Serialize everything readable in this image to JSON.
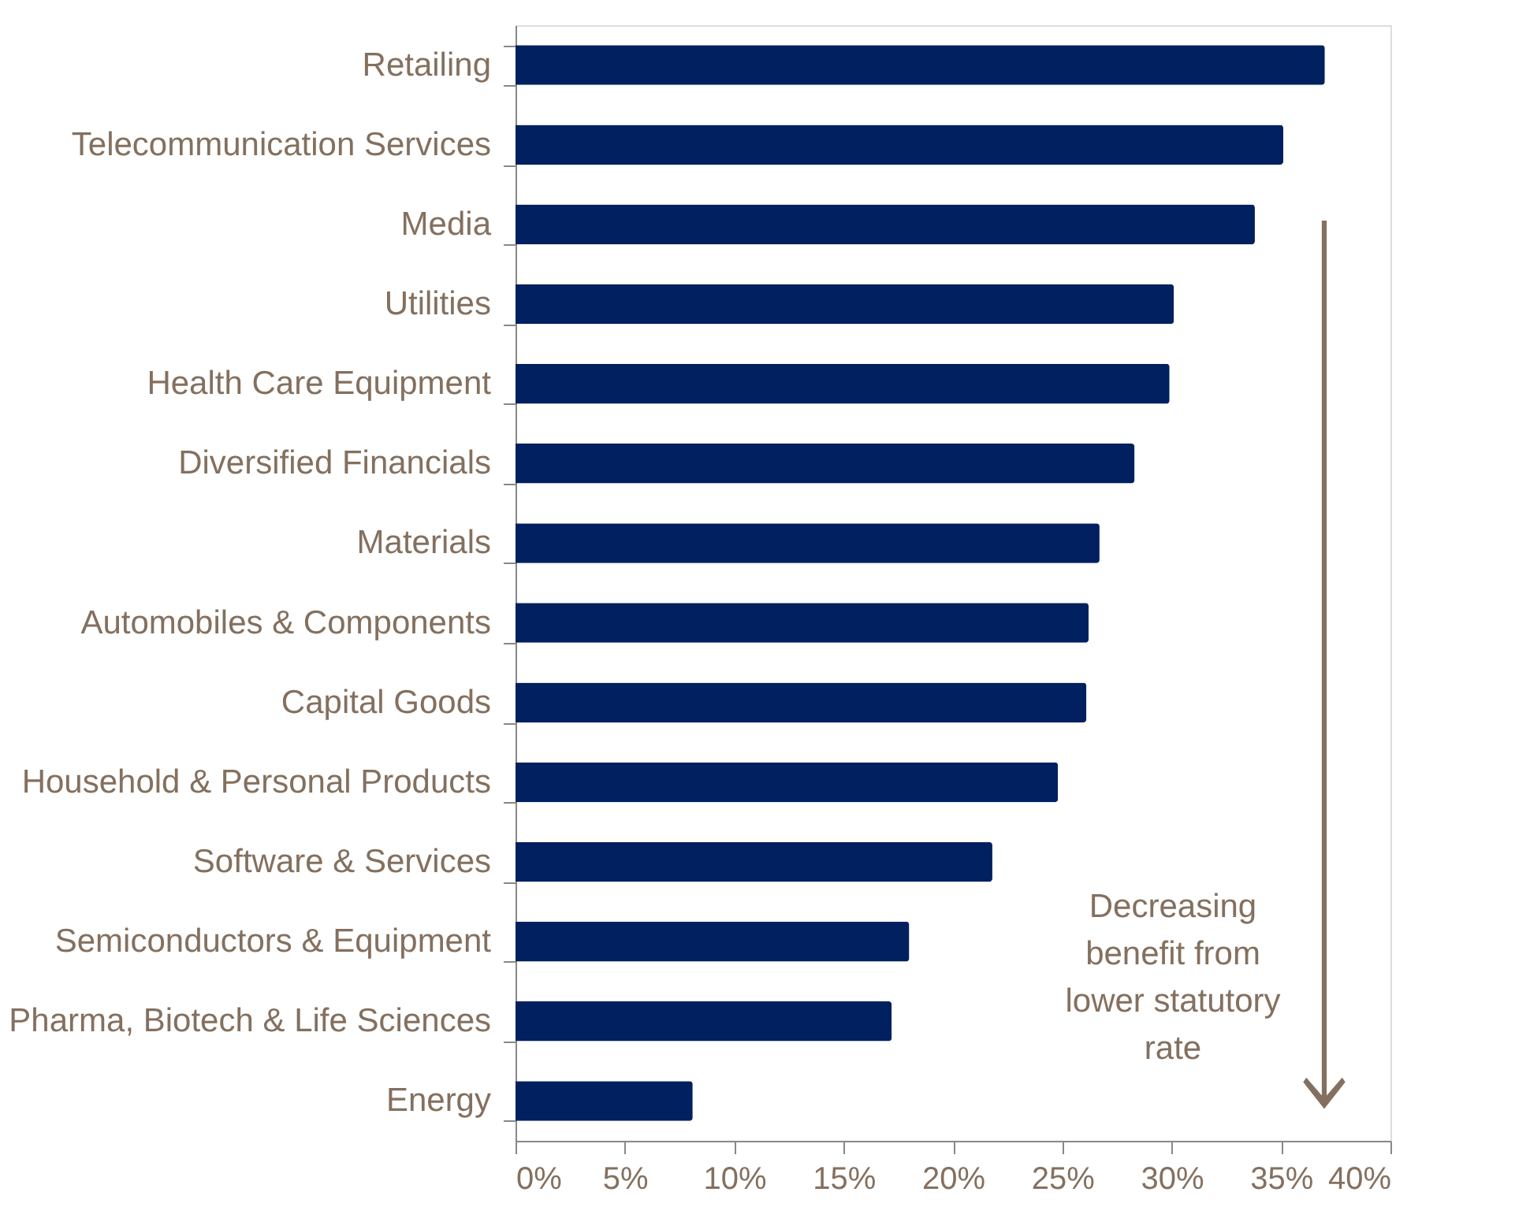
{
  "chart_data": {
    "type": "bar",
    "orientation": "horizontal",
    "categories": [
      "Retailing",
      "Telecommunication Services",
      "Media",
      "Utilities",
      "Health Care Equipment",
      "Diversified Financials",
      "Materials",
      "Automobiles & Components",
      "Capital Goods",
      "Household & Personal Products",
      "Software & Services",
      "Semiconductors & Equipment",
      "Pharma, Biotech & Life Sciences",
      "Energy"
    ],
    "values": [
      37.0,
      35.1,
      33.8,
      30.1,
      29.9,
      28.3,
      26.7,
      26.2,
      26.1,
      24.8,
      21.8,
      18.0,
      17.2,
      8.1
    ],
    "color": "#002060",
    "xlim": [
      0,
      40
    ],
    "xticks": [
      {
        "value": 0,
        "label": "0%"
      },
      {
        "value": 5,
        "label": "5%"
      },
      {
        "value": 10,
        "label": "10%"
      },
      {
        "value": 15,
        "label": "15%"
      },
      {
        "value": 20,
        "label": "20%"
      },
      {
        "value": 25,
        "label": "25%"
      },
      {
        "value": 30,
        "label": "30%"
      },
      {
        "value": 35,
        "label": "35%"
      },
      {
        "value": 40,
        "label": "40%"
      }
    ],
    "grid": false,
    "annotations": [
      "Decreasing\nbenefit from\nlower statutory\nrate"
    ]
  }
}
